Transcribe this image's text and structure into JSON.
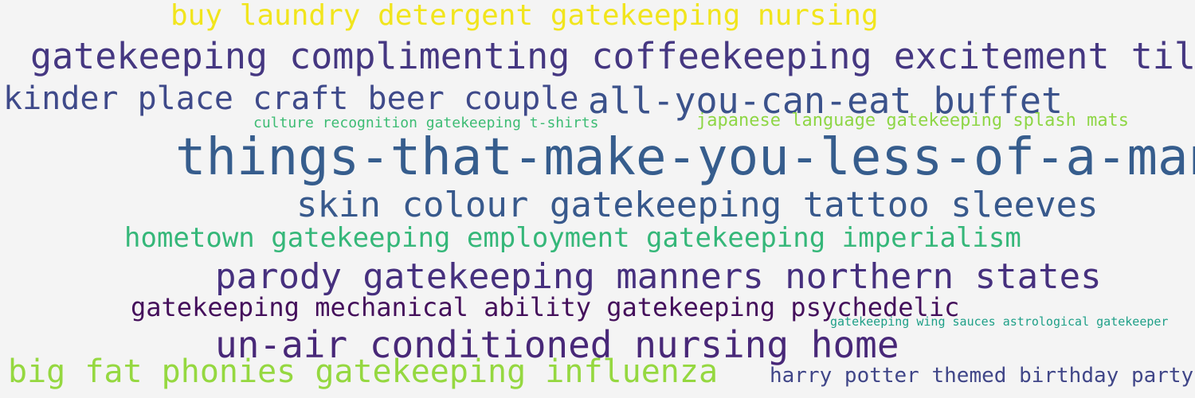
{
  "background_color": "#f4f4f4",
  "words": [
    {
      "text": "buy laundry detergent gatekeeping nursing",
      "color": "#f1e51d"
    },
    {
      "text": "gatekeeping complimenting coffeekeeping excitement til",
      "color": "#453781"
    },
    {
      "text": "kinder place craft beer couple",
      "color": "#3f4a8a"
    },
    {
      "text": "all-you-can-eat buffet",
      "color": "#3b528b"
    },
    {
      "text": "culture recognition gatekeeping t-shirts",
      "color": "#3dbc74"
    },
    {
      "text": "japanese language gatekeeping splash mats",
      "color": "#8ed645"
    },
    {
      "text": "things-that-make-you-less-of-a-man",
      "color": "#365d8d"
    },
    {
      "text": "skin colour gatekeeping tattoo sleeves",
      "color": "#38598c"
    },
    {
      "text": "hometown gatekeeping employment gatekeeping imperialism",
      "color": "#35b779"
    },
    {
      "text": "parody gatekeeping manners northern states",
      "color": "#46307e"
    },
    {
      "text": "gatekeeping mechanical ability gatekeeping psychedelic",
      "color": "#440f5b"
    },
    {
      "text": "gatekeeping wing sauces astrological gatekeeper",
      "color": "#1fa088"
    },
    {
      "text": "un-air conditioned nursing home",
      "color": "#482878"
    },
    {
      "text": "big fat phonies gatekeeping influenza",
      "color": "#95d840"
    },
    {
      "text": "harry potter themed birthday party",
      "color": "#404688"
    }
  ]
}
